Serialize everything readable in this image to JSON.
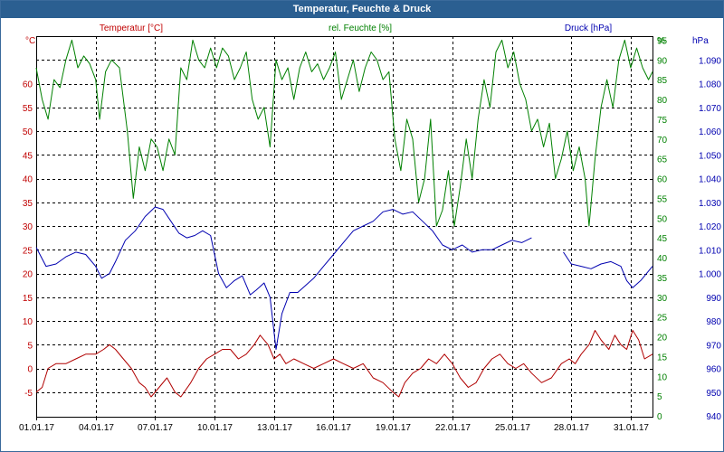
{
  "window": {
    "title": "Temperatur, Feuchte & Druck"
  },
  "chart_data": {
    "type": "line",
    "title": "Temperatur, Feuchte & Druck",
    "grid": true,
    "x_tick_labels": [
      "01.01.17",
      "04.01.17",
      "07.01.17",
      "10.01.17",
      "13.01.17",
      "16.01.17",
      "19.01.17",
      "22.01.17",
      "25.01.17",
      "28.01.17",
      "31.01.17"
    ],
    "x_range_days": [
      1,
      32.1
    ],
    "axes": {
      "temperature": {
        "label": "Temperatur [°C]",
        "unit": "°C",
        "range": [
          -10,
          70
        ],
        "ticks": [
          -10,
          -5,
          0,
          5,
          10,
          15,
          20,
          25,
          30,
          35,
          40,
          45,
          50,
          55,
          60,
          65
        ],
        "color": "#c00000"
      },
      "humidity": {
        "label": "rel. Feuchte [%]",
        "unit": "%",
        "range": [
          0,
          96
        ],
        "ticks": [
          0,
          5,
          10,
          15,
          20,
          25,
          30,
          35,
          40,
          45,
          50,
          55,
          60,
          65,
          70,
          75,
          80,
          85,
          90,
          95
        ],
        "color": "#008000"
      },
      "pressure": {
        "label": "Druck [hPa]",
        "unit": "hPa",
        "range": [
          940,
          1100
        ],
        "ticks": [
          940,
          950,
          960,
          970,
          980,
          990,
          1000,
          1010,
          1020,
          1030,
          1040,
          1050,
          1060,
          1070,
          1080,
          1090
        ],
        "color": "#0000b0"
      }
    },
    "series": [
      {
        "name": "Temperatur [°C]",
        "axis": "temperature",
        "color": "#b00000",
        "points": [
          [
            1.0,
            -5
          ],
          [
            1.3,
            -4
          ],
          [
            1.6,
            0
          ],
          [
            2.0,
            1
          ],
          [
            2.5,
            1
          ],
          [
            3.0,
            2
          ],
          [
            3.5,
            3
          ],
          [
            4.0,
            3
          ],
          [
            4.4,
            4
          ],
          [
            4.7,
            5
          ],
          [
            5.0,
            4
          ],
          [
            5.4,
            2
          ],
          [
            5.8,
            0
          ],
          [
            6.2,
            -3
          ],
          [
            6.5,
            -4
          ],
          [
            6.8,
            -6
          ],
          [
            7.2,
            -4
          ],
          [
            7.6,
            -2
          ],
          [
            8.0,
            -5
          ],
          [
            8.3,
            -6
          ],
          [
            8.8,
            -3
          ],
          [
            9.2,
            0
          ],
          [
            9.6,
            2
          ],
          [
            10.0,
            3
          ],
          [
            10.4,
            4
          ],
          [
            10.8,
            4
          ],
          [
            11.2,
            2
          ],
          [
            11.6,
            3
          ],
          [
            12.0,
            5
          ],
          [
            12.3,
            7
          ],
          [
            12.7,
            5
          ],
          [
            13.0,
            2
          ],
          [
            13.3,
            3
          ],
          [
            13.6,
            1
          ],
          [
            14.0,
            2
          ],
          [
            14.5,
            1
          ],
          [
            15.0,
            0
          ],
          [
            15.5,
            1
          ],
          [
            16.0,
            2
          ],
          [
            16.5,
            1
          ],
          [
            17.0,
            0
          ],
          [
            17.5,
            1
          ],
          [
            18.0,
            -2
          ],
          [
            18.5,
            -3
          ],
          [
            19.0,
            -5
          ],
          [
            19.3,
            -6
          ],
          [
            19.6,
            -3
          ],
          [
            20.0,
            -1
          ],
          [
            20.4,
            0
          ],
          [
            20.8,
            2
          ],
          [
            21.2,
            1
          ],
          [
            21.6,
            3
          ],
          [
            22.0,
            1
          ],
          [
            22.4,
            -2
          ],
          [
            22.8,
            -4
          ],
          [
            23.2,
            -3
          ],
          [
            23.6,
            0
          ],
          [
            24.0,
            2
          ],
          [
            24.4,
            3
          ],
          [
            24.8,
            1
          ],
          [
            25.2,
            0
          ],
          [
            25.6,
            1
          ],
          [
            26.0,
            -1
          ],
          [
            26.5,
            -3
          ],
          [
            27.0,
            -2
          ],
          [
            27.5,
            1
          ],
          [
            27.9,
            2
          ],
          [
            28.2,
            1
          ],
          [
            28.5,
            3
          ],
          [
            28.9,
            5
          ],
          [
            29.2,
            8
          ],
          [
            29.5,
            6
          ],
          [
            29.9,
            4
          ],
          [
            30.2,
            7
          ],
          [
            30.5,
            5
          ],
          [
            30.8,
            4
          ],
          [
            31.1,
            8
          ],
          [
            31.4,
            6
          ],
          [
            31.7,
            2
          ],
          [
            32.1,
            3
          ]
        ]
      },
      {
        "name": "rel. Feuchte [%]",
        "axis": "humidity",
        "color": "#008000",
        "points": [
          [
            1.0,
            88
          ],
          [
            1.3,
            80
          ],
          [
            1.6,
            75
          ],
          [
            1.9,
            85
          ],
          [
            2.2,
            83
          ],
          [
            2.5,
            90
          ],
          [
            2.8,
            95
          ],
          [
            3.1,
            88
          ],
          [
            3.4,
            91
          ],
          [
            3.7,
            89
          ],
          [
            4.0,
            85
          ],
          [
            4.2,
            75
          ],
          [
            4.5,
            87
          ],
          [
            4.8,
            90
          ],
          [
            5.2,
            88
          ],
          [
            5.6,
            72
          ],
          [
            5.9,
            55
          ],
          [
            6.2,
            68
          ],
          [
            6.5,
            62
          ],
          [
            6.8,
            70
          ],
          [
            7.1,
            68
          ],
          [
            7.4,
            62
          ],
          [
            7.7,
            70
          ],
          [
            8.0,
            66
          ],
          [
            8.3,
            88
          ],
          [
            8.6,
            85
          ],
          [
            8.9,
            95
          ],
          [
            9.2,
            90
          ],
          [
            9.5,
            88
          ],
          [
            9.8,
            93
          ],
          [
            10.1,
            88
          ],
          [
            10.4,
            93
          ],
          [
            10.7,
            91
          ],
          [
            11.0,
            85
          ],
          [
            11.3,
            88
          ],
          [
            11.6,
            92
          ],
          [
            11.9,
            80
          ],
          [
            12.2,
            75
          ],
          [
            12.5,
            78
          ],
          [
            12.8,
            68
          ],
          [
            13.1,
            90
          ],
          [
            13.4,
            85
          ],
          [
            13.7,
            88
          ],
          [
            14.0,
            80
          ],
          [
            14.3,
            88
          ],
          [
            14.6,
            92
          ],
          [
            14.9,
            87
          ],
          [
            15.2,
            89
          ],
          [
            15.5,
            85
          ],
          [
            15.8,
            88
          ],
          [
            16.1,
            92
          ],
          [
            16.4,
            80
          ],
          [
            16.7,
            85
          ],
          [
            17.0,
            90
          ],
          [
            17.3,
            82
          ],
          [
            17.6,
            88
          ],
          [
            17.9,
            92
          ],
          [
            18.2,
            90
          ],
          [
            18.5,
            85
          ],
          [
            18.8,
            87
          ],
          [
            19.1,
            70
          ],
          [
            19.4,
            62
          ],
          [
            19.7,
            75
          ],
          [
            20.0,
            70
          ],
          [
            20.3,
            54
          ],
          [
            20.6,
            60
          ],
          [
            20.9,
            75
          ],
          [
            21.2,
            48
          ],
          [
            21.5,
            52
          ],
          [
            21.8,
            62
          ],
          [
            22.1,
            48
          ],
          [
            22.4,
            58
          ],
          [
            22.7,
            70
          ],
          [
            23.0,
            60
          ],
          [
            23.3,
            75
          ],
          [
            23.6,
            85
          ],
          [
            23.9,
            78
          ],
          [
            24.2,
            92
          ],
          [
            24.5,
            95
          ],
          [
            24.8,
            88
          ],
          [
            25.1,
            92
          ],
          [
            25.4,
            84
          ],
          [
            25.7,
            80
          ],
          [
            26.0,
            72
          ],
          [
            26.3,
            75
          ],
          [
            26.6,
            68
          ],
          [
            26.9,
            74
          ],
          [
            27.2,
            60
          ],
          [
            27.5,
            65
          ],
          [
            27.8,
            72
          ],
          [
            28.1,
            62
          ],
          [
            28.4,
            68
          ],
          [
            28.7,
            60
          ],
          [
            28.9,
            48
          ],
          [
            29.2,
            65
          ],
          [
            29.5,
            78
          ],
          [
            29.8,
            85
          ],
          [
            30.1,
            78
          ],
          [
            30.4,
            90
          ],
          [
            30.7,
            95
          ],
          [
            31.0,
            88
          ],
          [
            31.3,
            93
          ],
          [
            31.6,
            88
          ],
          [
            31.9,
            85
          ],
          [
            32.1,
            87
          ]
        ]
      },
      {
        "name": "Druck [hPa]",
        "axis": "pressure",
        "color": "#0000b0",
        "points": [
          [
            1.0,
            1011
          ],
          [
            1.5,
            1003
          ],
          [
            2.0,
            1004
          ],
          [
            2.5,
            1007
          ],
          [
            3.0,
            1009
          ],
          [
            3.5,
            1008
          ],
          [
            4.0,
            1003
          ],
          [
            4.3,
            998
          ],
          [
            4.7,
            1000
          ],
          [
            5.0,
            1005
          ],
          [
            5.5,
            1014
          ],
          [
            6.0,
            1018
          ],
          [
            6.5,
            1024
          ],
          [
            7.0,
            1028
          ],
          [
            7.4,
            1027
          ],
          [
            7.8,
            1022
          ],
          [
            8.2,
            1017
          ],
          [
            8.6,
            1015
          ],
          [
            9.0,
            1016
          ],
          [
            9.4,
            1018
          ],
          [
            9.8,
            1016
          ],
          [
            10.2,
            1000
          ],
          [
            10.6,
            994
          ],
          [
            11.0,
            997
          ],
          [
            11.4,
            999
          ],
          [
            11.8,
            991
          ],
          [
            12.1,
            993
          ],
          [
            12.5,
            996
          ],
          [
            12.8,
            990
          ],
          [
            13.1,
            968
          ],
          [
            13.4,
            983
          ],
          [
            13.8,
            992
          ],
          [
            14.2,
            992
          ],
          [
            14.6,
            995
          ],
          [
            15.0,
            998
          ],
          [
            15.5,
            1003
          ],
          [
            16.0,
            1008
          ],
          [
            16.5,
            1013
          ],
          [
            17.0,
            1018
          ],
          [
            17.5,
            1020
          ],
          [
            18.0,
            1022
          ],
          [
            18.5,
            1026
          ],
          [
            19.0,
            1027
          ],
          [
            19.5,
            1025
          ],
          [
            20.0,
            1026
          ],
          [
            20.5,
            1022
          ],
          [
            21.0,
            1018
          ],
          [
            21.5,
            1012
          ],
          [
            22.0,
            1010
          ],
          [
            22.5,
            1012
          ],
          [
            23.0,
            1009
          ],
          [
            23.5,
            1010
          ],
          [
            24.0,
            1010
          ],
          [
            24.5,
            1012
          ],
          [
            25.0,
            1014
          ],
          [
            25.5,
            1013
          ],
          [
            26.0,
            1015
          ],
          null,
          [
            27.6,
            1009
          ],
          [
            28.0,
            1004
          ],
          [
            28.5,
            1003
          ],
          [
            29.0,
            1002
          ],
          [
            29.5,
            1004
          ],
          [
            30.0,
            1005
          ],
          [
            30.5,
            1003
          ],
          [
            30.8,
            997
          ],
          [
            31.1,
            994
          ],
          [
            31.5,
            997
          ],
          [
            32.1,
            1003
          ]
        ]
      }
    ]
  }
}
